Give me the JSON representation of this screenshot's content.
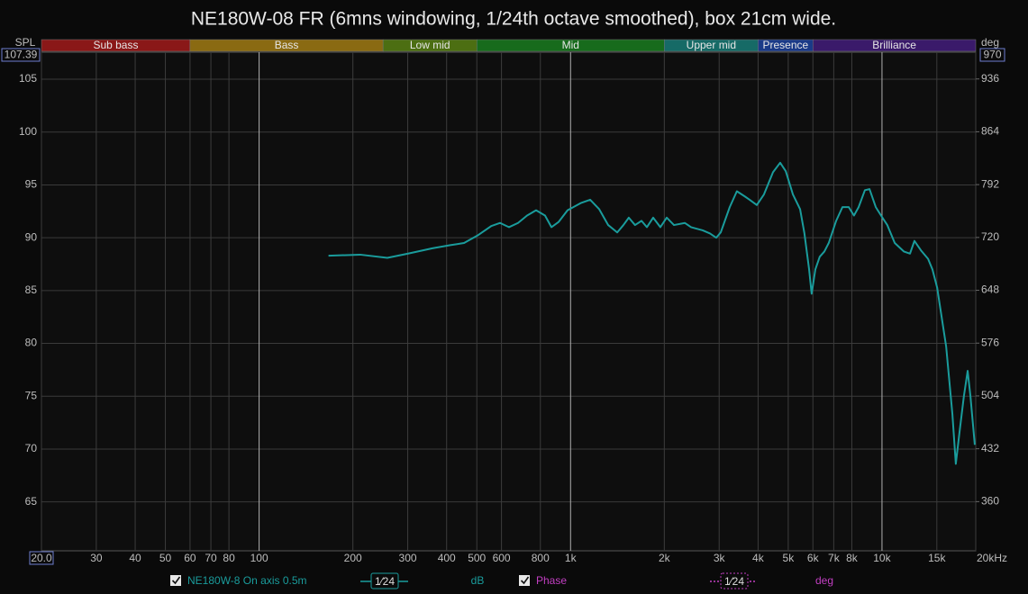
{
  "chart_data": {
    "type": "line",
    "title": "NE180W-08 FR (6mns windowing, 1/24th octave smoothed), box 21cm wide.",
    "y_label": "SPL",
    "y2_label": "deg",
    "log_x": true,
    "grid": true,
    "bands": [
      {
        "name": "Sub bass",
        "start": 20,
        "end": 60,
        "color": "#8a1818"
      },
      {
        "name": "Bass",
        "start": 60,
        "end": 250,
        "color": "#8a6a12"
      },
      {
        "name": "Low mid",
        "start": 250,
        "end": 500,
        "color": "#4c6e12"
      },
      {
        "name": "Mid",
        "start": 500,
        "end": 2000,
        "color": "#176b1c"
      },
      {
        "name": "Upper mid",
        "start": 2000,
        "end": 4000,
        "color": "#166a66"
      },
      {
        "name": "Presence",
        "start": 4000,
        "end": 6000,
        "color": "#1a3a88"
      },
      {
        "name": "Brilliance",
        "start": 6000,
        "end": 20000,
        "color": "#3a1a6a"
      }
    ],
    "x": [
      167,
      211,
      258,
      301,
      360,
      411,
      455,
      502,
      556,
      594,
      634,
      678,
      725,
      775,
      828,
      868,
      916,
      978,
      1082,
      1156,
      1236,
      1321,
      1412,
      1478,
      1538,
      1611,
      1690,
      1758,
      1842,
      1942,
      2036,
      2148,
      2327,
      2438,
      2656,
      2804,
      2937,
      3035,
      3244,
      3420,
      3631,
      3757,
      3963,
      4178,
      4467,
      4710,
      4909,
      5176,
      5458,
      5636,
      5834,
      5944,
      6110,
      6310,
      6531,
      6745,
      7126,
      7466,
      7820,
      8128,
      8414,
      8812,
      9120,
      9550,
      9932,
      10400,
      10990,
      11750,
      12300,
      12710,
      13340,
      14060,
      14520,
      15030,
      16070,
      16830,
      17260,
      17740,
      18320,
      18840,
      19230,
      19860
    ],
    "series": [
      {
        "name": "NE180W-8 On axis 0.5m",
        "color": "#1a9c9c",
        "smoothing": "1⁄24",
        "unit": "dB",
        "values": [
          88.3,
          88.4,
          88.1,
          88.5,
          89.0,
          89.3,
          89.5,
          90.2,
          91.1,
          91.4,
          91.0,
          91.4,
          92.1,
          92.6,
          92.1,
          91.0,
          91.5,
          92.6,
          93.3,
          93.6,
          92.7,
          91.2,
          90.5,
          91.2,
          91.9,
          91.2,
          91.6,
          91.0,
          91.9,
          91.0,
          91.9,
          91.2,
          91.4,
          91.0,
          90.7,
          90.4,
          90.0,
          90.5,
          92.9,
          94.4,
          93.9,
          93.6,
          93.1,
          94.1,
          96.2,
          97.1,
          96.3,
          94.1,
          92.7,
          90.4,
          87.0,
          84.7,
          87.0,
          88.2,
          88.7,
          89.5,
          91.6,
          92.9,
          92.9,
          92.1,
          92.9,
          94.5,
          94.6,
          92.9,
          92.1,
          91.2,
          89.5,
          88.7,
          88.5,
          89.7,
          88.8,
          88.0,
          87.0,
          85.3,
          79.7,
          73.3,
          68.6,
          71.6,
          75.0,
          77.4,
          75.0,
          70.4
        ]
      }
    ],
    "phase_legend": {
      "name": "Phase",
      "color": "#c23fc2",
      "smoothing": "1⁄24",
      "unit": "deg"
    },
    "xlim": [
      20,
      20000
    ],
    "ylim": [
      60.37,
      107.39
    ],
    "y2lim": [
      293,
      970
    ],
    "xticks": [
      {
        "value": 20,
        "label": "20.0"
      },
      30,
      40,
      50,
      60,
      70,
      80,
      100,
      200,
      300,
      400,
      500,
      600,
      800,
      {
        "value": 1000,
        "label": "1k"
      },
      {
        "value": 2000,
        "label": "2k"
      },
      {
        "value": 3000,
        "label": "3k"
      },
      {
        "value": 4000,
        "label": "4k"
      },
      {
        "value": 5000,
        "label": "5k"
      },
      {
        "value": 6000,
        "label": "6k"
      },
      {
        "value": 7000,
        "label": "7k"
      },
      {
        "value": 8000,
        "label": "8k"
      },
      {
        "value": 10000,
        "label": "10k"
      },
      {
        "value": 15000,
        "label": "15k"
      },
      {
        "value": 20000,
        "label": "20kHz"
      }
    ],
    "yticks": [
      65,
      70,
      75,
      80,
      85,
      90,
      95,
      100,
      105
    ],
    "y2ticks": [
      360,
      432,
      504,
      576,
      648,
      720,
      792,
      864,
      936
    ]
  }
}
